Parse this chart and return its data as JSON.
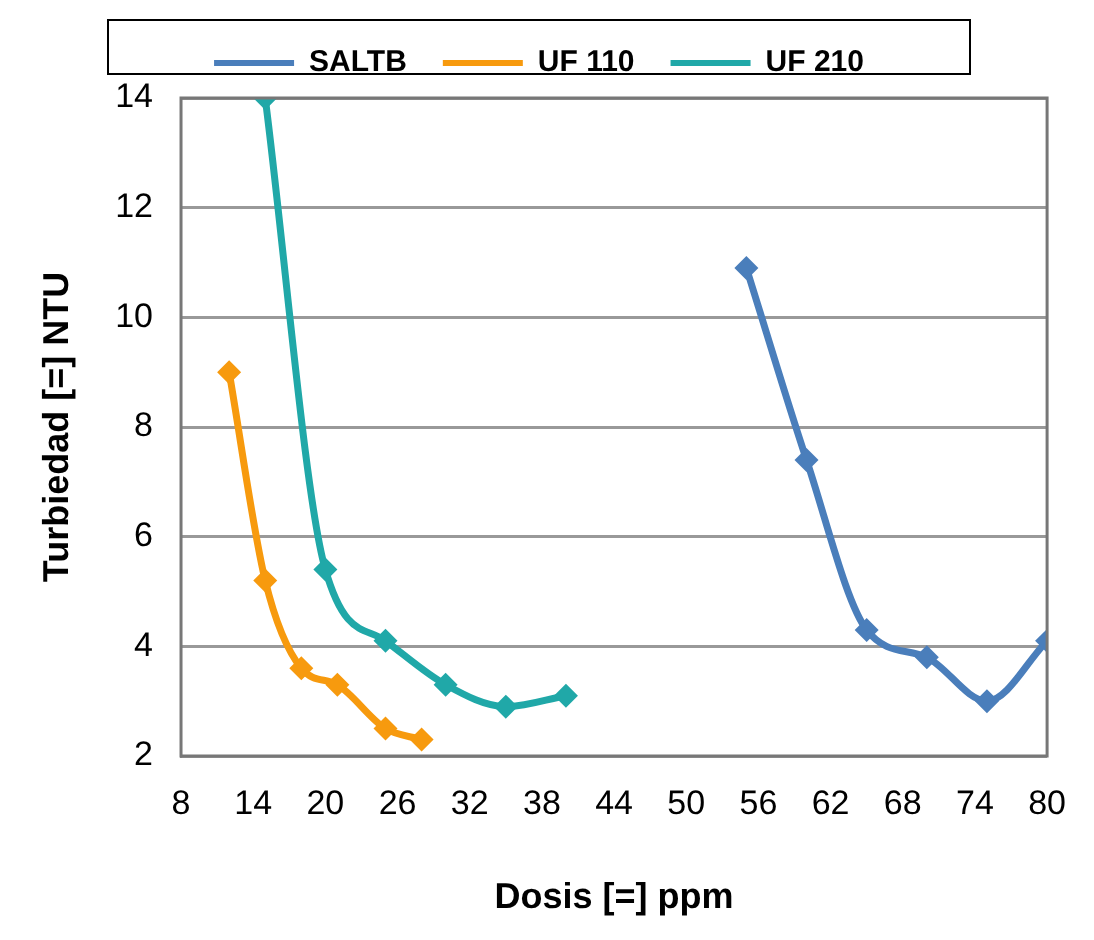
{
  "chart_data": {
    "type": "line",
    "xlabel": "Dosis [=] ppm",
    "ylabel": "Turbiedad [=] NTU",
    "series": [
      {
        "name": "SALTB",
        "color": "#4a7ebb",
        "x": [
          55,
          60,
          65,
          70,
          75,
          80
        ],
        "values": [
          10.9,
          7.4,
          4.3,
          3.8,
          3.0,
          4.1
        ]
      },
      {
        "name": "UF 110",
        "color": "#f79a0e",
        "x": [
          12,
          15,
          18,
          21,
          25,
          28
        ],
        "values": [
          9.0,
          5.2,
          3.6,
          3.3,
          2.5,
          2.3
        ]
      },
      {
        "name": "UF 210",
        "color": "#20a8a8",
        "x": [
          15,
          20,
          25,
          30,
          35,
          40
        ],
        "values": [
          14,
          5.4,
          4.1,
          3.3,
          2.9,
          3.1
        ]
      }
    ],
    "xlim": [
      8,
      80
    ],
    "xticks": [
      8,
      14,
      20,
      26,
      32,
      38,
      44,
      50,
      56,
      62,
      68,
      74,
      80
    ],
    "ylim": [
      2,
      14
    ],
    "yticks": [
      2,
      4,
      6,
      8,
      10,
      12,
      14
    ],
    "grid": "y",
    "legend": "top",
    "marker": "diamond",
    "line_style": "solid"
  }
}
